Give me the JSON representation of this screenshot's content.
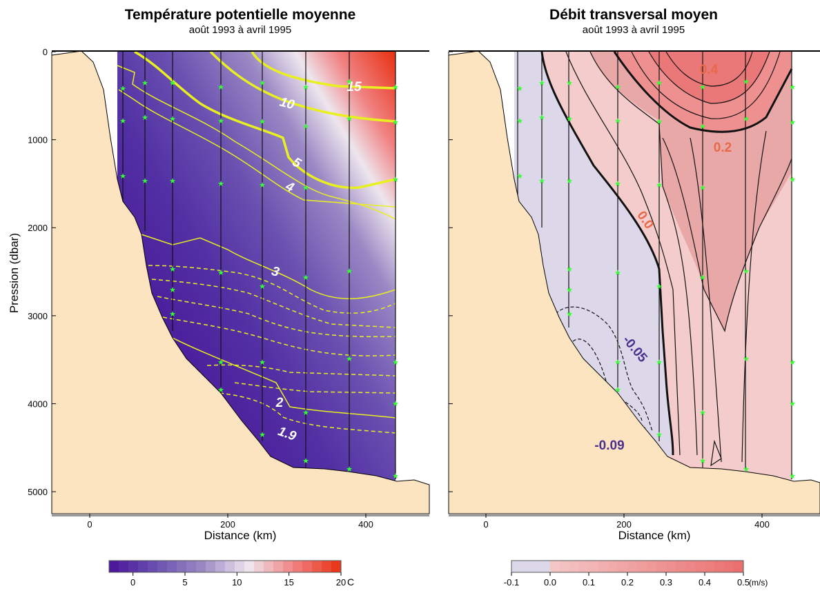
{
  "chart_data": [
    {
      "type": "contour",
      "title": "Température potentielle moyenne",
      "subtitle": "août 1993 à avril 1995",
      "xlabel": "Distance (km)",
      "ylabel": "Pression (dbar)",
      "xlim": [
        -55,
        492
      ],
      "ylim": [
        5250,
        0
      ],
      "xticks": [
        0,
        200,
        400
      ],
      "yticks": [
        0,
        1000,
        2000,
        3000,
        4000,
        5000
      ],
      "contour_labels": [
        15,
        10,
        5,
        4,
        3,
        2,
        1.9
      ],
      "colorbar": {
        "lim": [
          -2.3,
          20
        ],
        "ticks": [
          0,
          5,
          10,
          15,
          20
        ],
        "unit": "C"
      }
    },
    {
      "type": "contour",
      "title": "Débit transversal moyen",
      "subtitle": "août 1993 à avril 1995",
      "xlabel": "Distance (km)",
      "xlim": [
        -54,
        484
      ],
      "ylim": [
        5250,
        0
      ],
      "xticks": [
        0,
        200,
        400
      ],
      "yticks": [
        0,
        1000,
        2000,
        3000,
        4000,
        5000
      ],
      "contour_labels": [
        0.4,
        0.2,
        {
          "value": 0,
          "label": "0.0"
        },
        -0.05,
        -0.09
      ],
      "colorbar": {
        "lim": [
          -0.1,
          0.5
        ],
        "ticks": [
          -0.1,
          {
            "value": 0,
            "label": "0.0"
          },
          0.1,
          0.2,
          0.3,
          0.4,
          0.5
        ],
        "unit": "(m/s)"
      }
    }
  ]
}
